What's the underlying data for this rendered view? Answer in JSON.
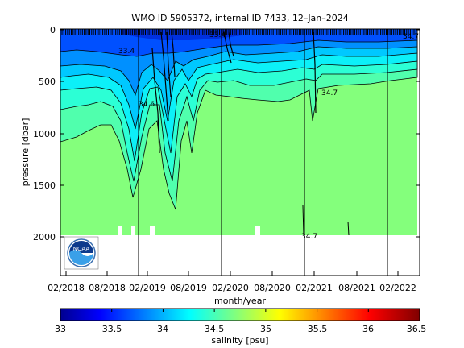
{
  "chart_data": {
    "type": "heatmap",
    "title": "WMO ID 5905372, internal ID 7433, 12–Jan–2024",
    "xlabel": "month/year",
    "ylabel": "pressure [dbar]",
    "x_tick_labels": [
      "02/2018",
      "08/2018",
      "02/2019",
      "08/2019",
      "02/2020",
      "08/2020",
      "02/2021",
      "08/2021",
      "02/2022"
    ],
    "y_ticks": [
      0,
      500,
      1000,
      1500,
      2000
    ],
    "ylim": [
      0,
      2400
    ],
    "y_reversed": true,
    "colorbar": {
      "label": "salinity [psu]",
      "range": [
        33,
        36.5
      ],
      "tick_labels": [
        "33",
        "33.5",
        "34",
        "34.5",
        "35",
        "35.5",
        "36",
        "36.5"
      ]
    },
    "contour_labels": [
      "33.4",
      "34.6",
      "34.7",
      "34.7",
      "33.4",
      "34.7"
    ],
    "deep_salinity_psu": 34.7,
    "logo_text": "NOAA"
  }
}
